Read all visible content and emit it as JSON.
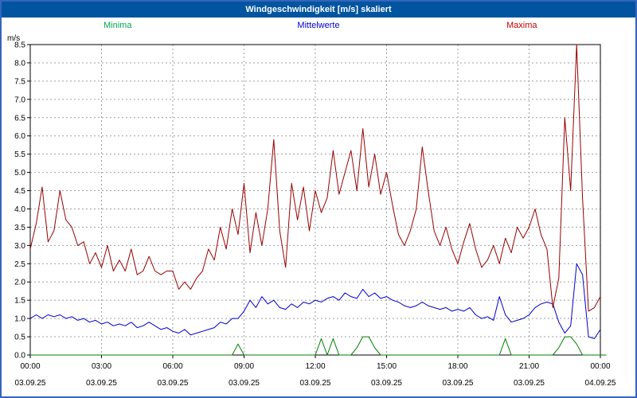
{
  "window": {
    "title": "Windgeschwindigkeit [m/s] skaliert"
  },
  "colors": {
    "titlebar_bg": "#0054a0",
    "page_border": "#3366bb",
    "grid": "#9f9f9f",
    "frame": "#000000"
  },
  "legend": [
    {
      "label": "Minima",
      "color": "#00a651"
    },
    {
      "label": "Mittelwerte",
      "color": "#0000cc"
    },
    {
      "label": "Maxima",
      "color": "#cc0000"
    }
  ],
  "chart_data": {
    "type": "line",
    "title": "Windgeschwindigkeit [m/s] skaliert",
    "ylabel": "m/s",
    "ylim": [
      0,
      8.5
    ],
    "ytick_step": 0.5,
    "grid": true,
    "interval_minutes": 15,
    "x_tick_hours": [
      0,
      3,
      6,
      9,
      12,
      15,
      18,
      21,
      24
    ],
    "x_tick_labels": [
      "00:00",
      "03:00",
      "06:00",
      "09:00",
      "12:00",
      "15:00",
      "18:00",
      "21:00",
      "00:00"
    ],
    "x_tick_dates": [
      "03.09.25",
      "03.09.25",
      "03.09.25",
      "03.09.25",
      "03.09.25",
      "03.09.25",
      "03.09.25",
      "03.09.25",
      "04.09.25"
    ],
    "series": [
      {
        "name": "Minima",
        "color": "#008000",
        "values": [
          0,
          0,
          0,
          0,
          0,
          0,
          0,
          0,
          0,
          0,
          0,
          0,
          0,
          0,
          0,
          0,
          0,
          0,
          0,
          0,
          0,
          0,
          0,
          0,
          0,
          0,
          0,
          0,
          0,
          0,
          0,
          0,
          0,
          0,
          0,
          0.3,
          0,
          0,
          0,
          0,
          0,
          0,
          0,
          0,
          0,
          0,
          0,
          0,
          0,
          0.45,
          0,
          0.45,
          0,
          0,
          0,
          0.2,
          0.5,
          0.5,
          0.2,
          0,
          0,
          0,
          0,
          0,
          0,
          0,
          0,
          0,
          0,
          0,
          0,
          0,
          0,
          0,
          0,
          0,
          0,
          0,
          0,
          0,
          0.45,
          0,
          0,
          0,
          0,
          0,
          0,
          0,
          0,
          0.2,
          0.5,
          0.5,
          0.3,
          0,
          0,
          0,
          0,
          0
        ]
      },
      {
        "name": "Mittelwerte",
        "color": "#0000cc",
        "values": [
          1.0,
          1.1,
          1.0,
          1.1,
          1.05,
          1.1,
          1.0,
          1.05,
          0.95,
          1.0,
          0.9,
          0.95,
          0.85,
          0.9,
          0.8,
          0.85,
          0.8,
          0.9,
          0.75,
          0.8,
          0.9,
          0.8,
          0.7,
          0.75,
          0.65,
          0.6,
          0.7,
          0.55,
          0.6,
          0.65,
          0.7,
          0.75,
          0.9,
          0.85,
          1.0,
          1.0,
          1.2,
          1.5,
          1.3,
          1.6,
          1.4,
          1.5,
          1.3,
          1.25,
          1.4,
          1.3,
          1.45,
          1.4,
          1.5,
          1.45,
          1.55,
          1.6,
          1.5,
          1.7,
          1.6,
          1.55,
          1.8,
          1.6,
          1.7,
          1.55,
          1.6,
          1.5,
          1.45,
          1.35,
          1.3,
          1.35,
          1.45,
          1.35,
          1.3,
          1.25,
          1.3,
          1.2,
          1.25,
          1.2,
          1.3,
          1.1,
          1.0,
          1.05,
          0.95,
          1.6,
          1.1,
          0.9,
          0.95,
          1.0,
          1.1,
          1.3,
          1.4,
          1.45,
          1.4,
          0.9,
          0.6,
          0.8,
          2.5,
          2.2,
          0.5,
          0.45,
          0.7
        ]
      },
      {
        "name": "Maxima",
        "color": "#990000",
        "values": [
          2.9,
          3.6,
          4.6,
          3.1,
          3.4,
          4.5,
          3.7,
          3.5,
          3.0,
          3.1,
          2.5,
          2.8,
          2.4,
          3.0,
          2.3,
          2.6,
          2.3,
          2.9,
          2.2,
          2.3,
          2.7,
          2.3,
          2.2,
          2.3,
          2.3,
          1.8,
          2.0,
          1.8,
          2.1,
          2.3,
          2.9,
          2.6,
          3.5,
          2.9,
          4.0,
          3.3,
          4.7,
          2.8,
          3.9,
          3.0,
          4.0,
          5.9,
          3.4,
          2.4,
          4.7,
          3.7,
          4.6,
          3.4,
          4.5,
          3.9,
          4.3,
          5.6,
          4.4,
          5.0,
          5.6,
          4.5,
          6.2,
          4.6,
          5.5,
          4.4,
          5.0,
          4.1,
          3.3,
          3.0,
          3.4,
          4.0,
          5.7,
          4.5,
          3.4,
          3.0,
          3.5,
          2.9,
          2.5,
          3.1,
          3.6,
          2.9,
          2.4,
          2.6,
          3.0,
          2.5,
          3.2,
          2.8,
          3.5,
          3.2,
          3.5,
          4.0,
          3.3,
          2.9,
          1.3,
          2.1,
          6.5,
          4.5,
          8.5,
          4.3,
          1.2,
          1.3,
          1.6
        ]
      }
    ]
  }
}
